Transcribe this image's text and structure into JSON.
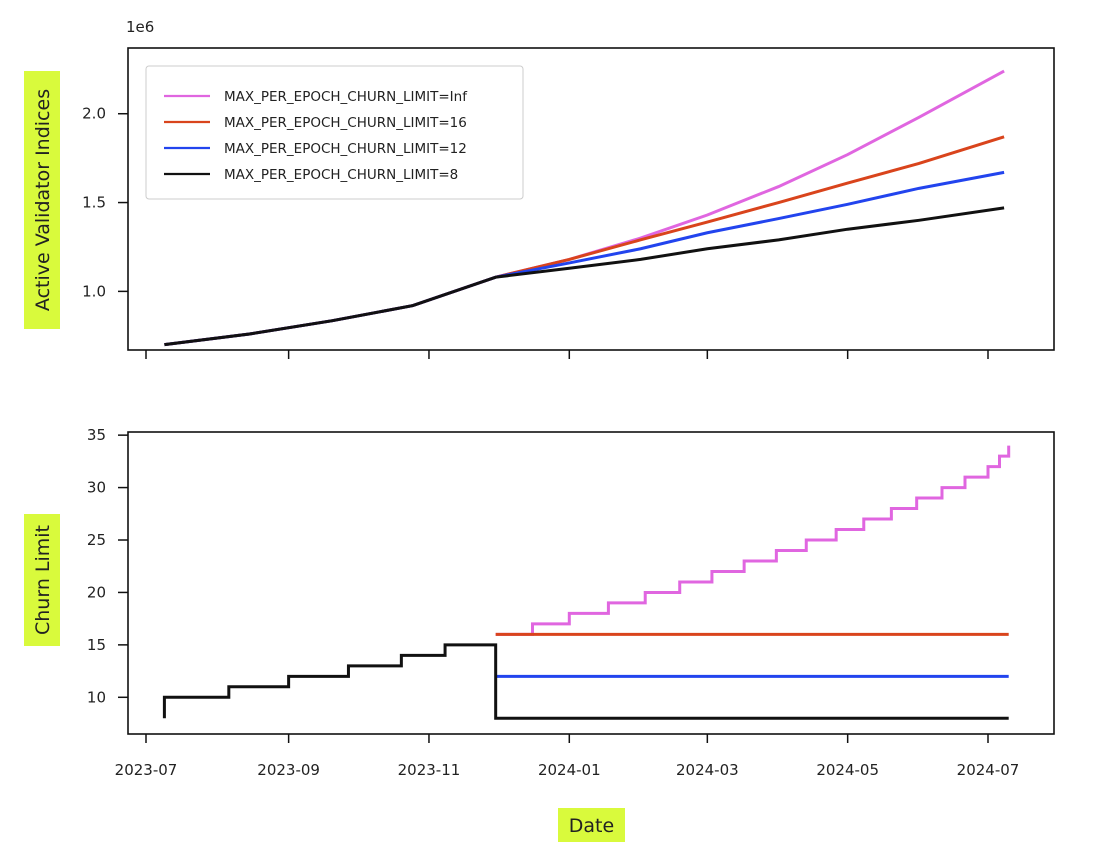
{
  "colors": {
    "label_highlight": "#d9fa3c",
    "axis": "#111111",
    "series_inf": "#e066e0",
    "series_16": "#d9441c",
    "series_12": "#2244ee",
    "series_8": "#111111"
  },
  "xlabel": "Date",
  "x_tick_labels": [
    "2023-07",
    "2023-09",
    "2023-11",
    "2024-01",
    "2024-03",
    "2024-05",
    "2024-07"
  ],
  "chart_data": [
    {
      "type": "line",
      "ylabel": "Active Validator Indices",
      "y_scale_label": "1e6",
      "ylim": [
        0.67,
        2.37
      ],
      "y_ticks": [
        "1.0",
        "1.5",
        "2.0"
      ],
      "grid": false,
      "legend_placement": "top-left",
      "series": [
        {
          "name": "MAX_PER_EPOCH_CHURN_LIMIT=Inf",
          "color_key": "series_inf",
          "points": [
            [
              "2023-07-09",
              0.7
            ],
            [
              "2023-08-15",
              0.76
            ],
            [
              "2023-09-20",
              0.835
            ],
            [
              "2023-10-25",
              0.92
            ],
            [
              "2023-11-30",
              1.08
            ],
            [
              "2024-01-01",
              1.18
            ],
            [
              "2024-02-01",
              1.3
            ],
            [
              "2024-03-01",
              1.43
            ],
            [
              "2024-04-01",
              1.59
            ],
            [
              "2024-05-01",
              1.77
            ],
            [
              "2024-06-01",
              1.98
            ],
            [
              "2024-07-08",
              2.24
            ]
          ]
        },
        {
          "name": "MAX_PER_EPOCH_CHURN_LIMIT=16",
          "color_key": "series_16",
          "points": [
            [
              "2023-07-09",
              0.7
            ],
            [
              "2023-08-15",
              0.76
            ],
            [
              "2023-09-20",
              0.835
            ],
            [
              "2023-10-25",
              0.92
            ],
            [
              "2023-11-30",
              1.08
            ],
            [
              "2024-01-01",
              1.18
            ],
            [
              "2024-02-01",
              1.29
            ],
            [
              "2024-03-01",
              1.39
            ],
            [
              "2024-04-01",
              1.5
            ],
            [
              "2024-05-01",
              1.61
            ],
            [
              "2024-06-01",
              1.72
            ],
            [
              "2024-07-08",
              1.87
            ]
          ]
        },
        {
          "name": "MAX_PER_EPOCH_CHURN_LIMIT=12",
          "color_key": "series_12",
          "points": [
            [
              "2023-07-09",
              0.7
            ],
            [
              "2023-08-15",
              0.76
            ],
            [
              "2023-09-20",
              0.835
            ],
            [
              "2023-10-25",
              0.92
            ],
            [
              "2023-11-30",
              1.08
            ],
            [
              "2024-01-01",
              1.16
            ],
            [
              "2024-02-01",
              1.24
            ],
            [
              "2024-03-01",
              1.33
            ],
            [
              "2024-04-01",
              1.41
            ],
            [
              "2024-05-01",
              1.49
            ],
            [
              "2024-06-01",
              1.58
            ],
            [
              "2024-07-08",
              1.67
            ]
          ]
        },
        {
          "name": "MAX_PER_EPOCH_CHURN_LIMIT=8",
          "color_key": "series_8",
          "points": [
            [
              "2023-07-09",
              0.7
            ],
            [
              "2023-08-15",
              0.76
            ],
            [
              "2023-09-20",
              0.835
            ],
            [
              "2023-10-25",
              0.92
            ],
            [
              "2023-11-30",
              1.08
            ],
            [
              "2024-01-01",
              1.13
            ],
            [
              "2024-02-01",
              1.18
            ],
            [
              "2024-03-01",
              1.24
            ],
            [
              "2024-04-01",
              1.29
            ],
            [
              "2024-05-01",
              1.35
            ],
            [
              "2024-06-01",
              1.4
            ],
            [
              "2024-07-08",
              1.47
            ]
          ]
        }
      ]
    },
    {
      "type": "line",
      "ylabel": "Churn Limit",
      "ylim": [
        6.5,
        35.3
      ],
      "y_ticks": [
        "10",
        "15",
        "20",
        "25",
        "30",
        "35"
      ],
      "grid": false,
      "step": true,
      "series": [
        {
          "color_key": "series_inf",
          "points": [
            [
              "2023-11-30",
              16
            ],
            [
              "2023-12-16",
              17
            ],
            [
              "2024-01-01",
              18
            ],
            [
              "2024-01-18",
              19
            ],
            [
              "2024-02-03",
              20
            ],
            [
              "2024-02-18",
              21
            ],
            [
              "2024-03-03",
              22
            ],
            [
              "2024-03-17",
              23
            ],
            [
              "2024-03-31",
              24
            ],
            [
              "2024-04-13",
              25
            ],
            [
              "2024-04-26",
              26
            ],
            [
              "2024-05-08",
              27
            ],
            [
              "2024-05-20",
              28
            ],
            [
              "2024-05-31",
              29
            ],
            [
              "2024-06-11",
              30
            ],
            [
              "2024-06-21",
              31
            ],
            [
              "2024-07-01",
              32
            ],
            [
              "2024-07-06",
              33
            ],
            [
              "2024-07-10",
              34
            ]
          ]
        },
        {
          "color_key": "series_16",
          "points": [
            [
              "2023-11-30",
              16
            ],
            [
              "2024-07-10",
              16
            ]
          ]
        },
        {
          "color_key": "series_12",
          "points": [
            [
              "2023-11-30",
              12
            ],
            [
              "2024-07-10",
              12
            ]
          ]
        },
        {
          "color_key": "series_8",
          "points": [
            [
              "2023-07-09",
              8
            ],
            [
              "2023-07-09",
              10
            ],
            [
              "2023-08-06",
              11
            ],
            [
              "2023-09-01",
              12
            ],
            [
              "2023-09-27",
              13
            ],
            [
              "2023-10-20",
              14
            ],
            [
              "2023-11-08",
              15
            ],
            [
              "2023-11-30",
              15
            ],
            [
              "2023-11-30",
              8
            ],
            [
              "2024-07-10",
              8
            ]
          ]
        }
      ]
    }
  ]
}
